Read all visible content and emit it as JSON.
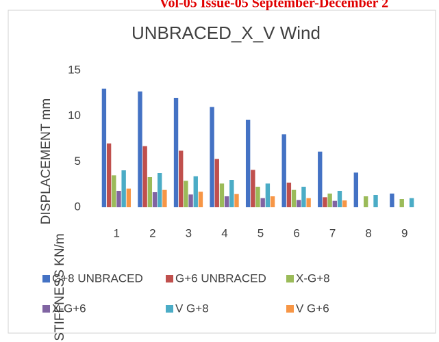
{
  "header": "Vol-05 Issue-05 September-December 2",
  "chart_data": {
    "type": "bar",
    "title": "UNBRACED_X_V Wind",
    "y_label": "DISPLACEMENT mm",
    "y_label_2": "STIFFNESS KN/m",
    "categories": [
      "1",
      "2",
      "3",
      "4",
      "5",
      "6",
      "7",
      "8",
      "9"
    ],
    "series": [
      {
        "name": "G+8 UNBRACED",
        "color": "#4472c4",
        "values": [
          13.0,
          12.7,
          12.0,
          11.0,
          9.6,
          8.0,
          6.1,
          3.8,
          1.5
        ]
      },
      {
        "name": "G+6 UNBRACED",
        "color": "#c0504d",
        "values": [
          7.0,
          6.7,
          6.2,
          5.3,
          4.1,
          2.7,
          1.1,
          null,
          null
        ]
      },
      {
        "name": "X-G+8",
        "color": "#9bbb59",
        "values": [
          3.5,
          3.3,
          2.9,
          2.6,
          2.25,
          1.9,
          1.5,
          1.2,
          0.9
        ]
      },
      {
        "name": "X-G+6",
        "color": "#8064a2",
        "values": [
          1.8,
          1.65,
          1.4,
          1.2,
          1.0,
          0.8,
          0.7,
          null,
          null
        ]
      },
      {
        "name": "V G+8",
        "color": "#4bacc6",
        "values": [
          4.05,
          3.75,
          3.4,
          3.0,
          2.6,
          2.25,
          1.8,
          1.35,
          1.0
        ]
      },
      {
        "name": "V G+6",
        "color": "#f79646",
        "values": [
          2.05,
          1.9,
          1.7,
          1.45,
          1.2,
          1.0,
          0.75,
          null,
          null
        ]
      }
    ],
    "ylim": [
      0,
      15
    ],
    "yticks": [
      0,
      5,
      10,
      15
    ],
    "grid": false,
    "legend": "bottom"
  }
}
